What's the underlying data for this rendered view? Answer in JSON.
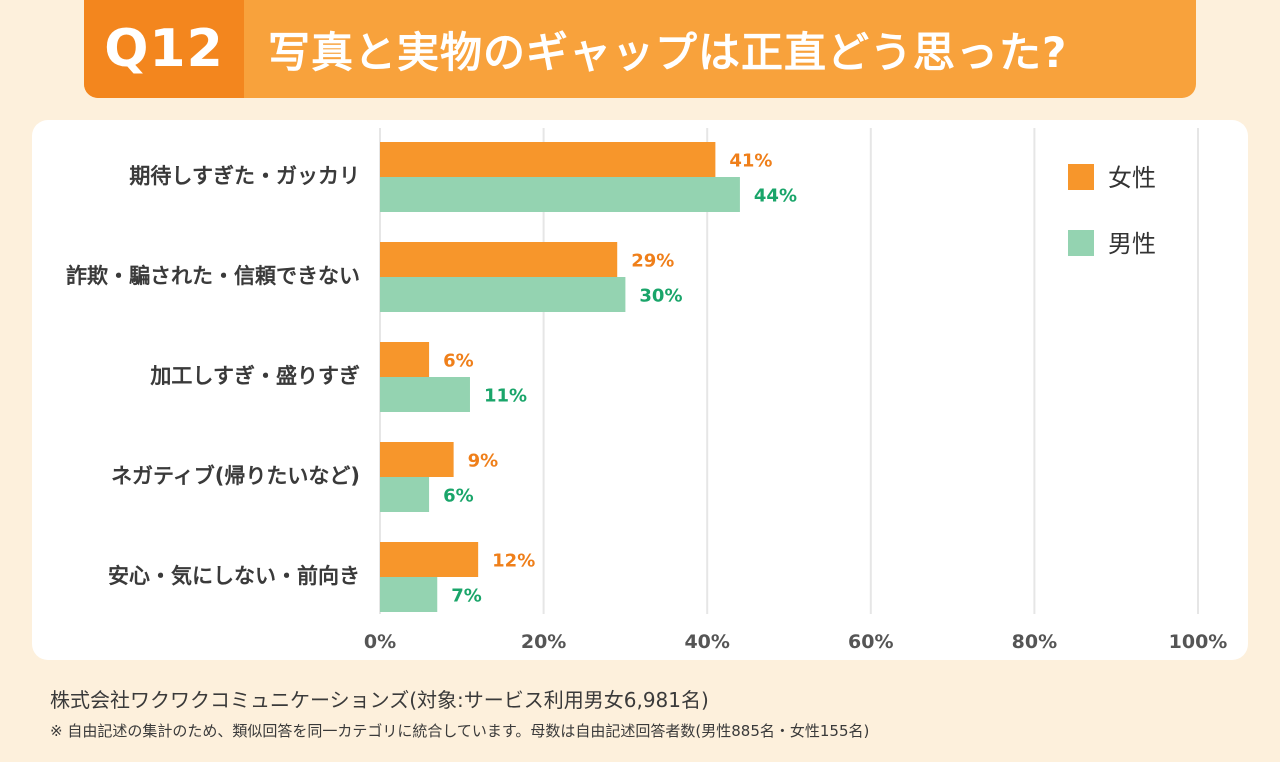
{
  "header": {
    "q_label": "Q12",
    "title": "写真と実物のギャップは正直どう思った?"
  },
  "chart_data": {
    "type": "bar",
    "orientation": "horizontal",
    "title": "写真と実物のギャップは正直どう思った?",
    "categories": [
      "期待しすぎた・ガッカリ",
      "詐欺・騙された・信頼できない",
      "加工しすぎ・盛りすぎ",
      "ネガティブ(帰りたいなど)",
      "安心・気にしない・前向き"
    ],
    "series": [
      {
        "name": "女性",
        "color": "#f7962b",
        "label_color": "#ef7f1a",
        "values": [
          41,
          29,
          6,
          9,
          12
        ]
      },
      {
        "name": "男性",
        "color": "#94d3b1",
        "label_color": "#1aa56a",
        "values": [
          44,
          30,
          11,
          6,
          7
        ]
      }
    ],
    "value_suffix": "%",
    "xlim": [
      0,
      100
    ],
    "xticks": [
      0,
      20,
      40,
      60,
      80,
      100
    ],
    "tick_labels": [
      "0%",
      "20%",
      "40%",
      "60%",
      "80%",
      "100%"
    ],
    "grid": true,
    "legend": "top-right"
  },
  "footer": {
    "source": "株式会社ワクワクコミュニケーションズ(対象:サービス利用男女6,981名)",
    "note": "※ 自由記述の集計のため、類似回答を同一カテゴリに統合しています。母数は自由記述回答者数(男性885名・女性155名)"
  }
}
